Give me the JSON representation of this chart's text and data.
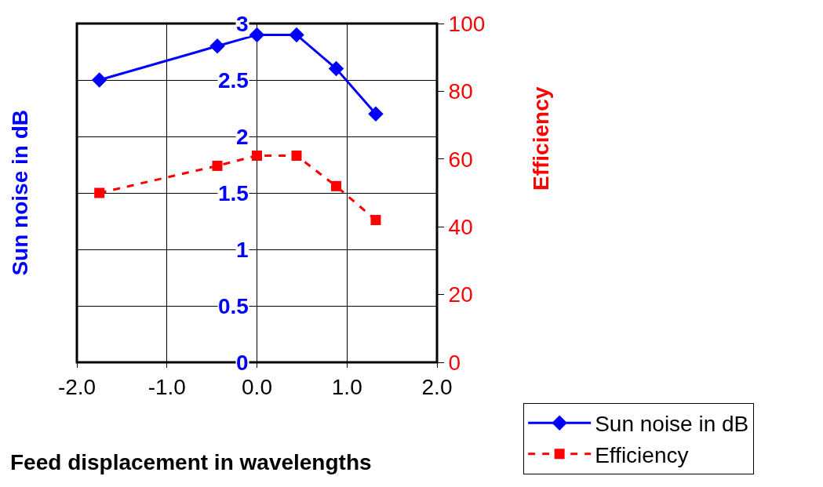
{
  "chart_data": {
    "type": "line",
    "xlabel": "Feed displacement in wavelengths",
    "ylabel": "Sun noise in dB",
    "y2label": "Efficiency",
    "x": [
      -1.75,
      -0.44,
      0,
      0.44,
      0.88,
      1.32
    ],
    "series": [
      {
        "name": "Sun noise in dB",
        "color": "#0000ff",
        "values": [
          2.5,
          2.8,
          2.9,
          2.9,
          2.6,
          2.2
        ],
        "marker": "diamond",
        "line_style": "solid"
      },
      {
        "name": "Efficiency",
        "color": "#ff0000",
        "values": [
          50,
          58,
          61,
          61,
          52,
          42
        ],
        "axis": "y2",
        "marker": "square",
        "line_style": "dashed"
      }
    ],
    "xlim": [
      -2,
      2
    ],
    "xticks": [
      {
        "value": -2,
        "label": "-2.0"
      },
      {
        "value": -1,
        "label": "-1.0"
      },
      {
        "value": 0,
        "label": "0.0"
      },
      {
        "value": 1,
        "label": "1.0"
      },
      {
        "value": 2,
        "label": "2.0"
      }
    ],
    "ylim": [
      0,
      3
    ],
    "yticks": [
      0,
      0.5,
      1,
      1.5,
      2,
      2.5,
      3
    ],
    "y2lim": [
      0,
      100
    ],
    "y2ticks": [
      0,
      20,
      40,
      60,
      80,
      100
    ],
    "grid": true,
    "legend": "bottom right"
  }
}
